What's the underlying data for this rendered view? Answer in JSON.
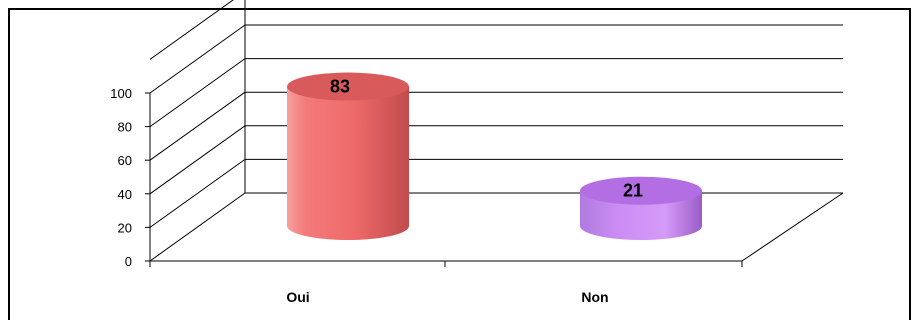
{
  "chart_data": {
    "type": "bar",
    "style": "3d-cylinder",
    "categories": [
      "Oui",
      "Non"
    ],
    "values": [
      83,
      21
    ],
    "data_labels": [
      "83",
      "21"
    ],
    "yticks": [
      "0",
      "20",
      "40",
      "60",
      "80",
      "100"
    ],
    "ylim": [
      0,
      100
    ],
    "grid": true,
    "legend": "none",
    "colors": {
      "Oui": "#f46f6f",
      "Non": "#c77df2",
      "gridline": "#000000"
    }
  }
}
